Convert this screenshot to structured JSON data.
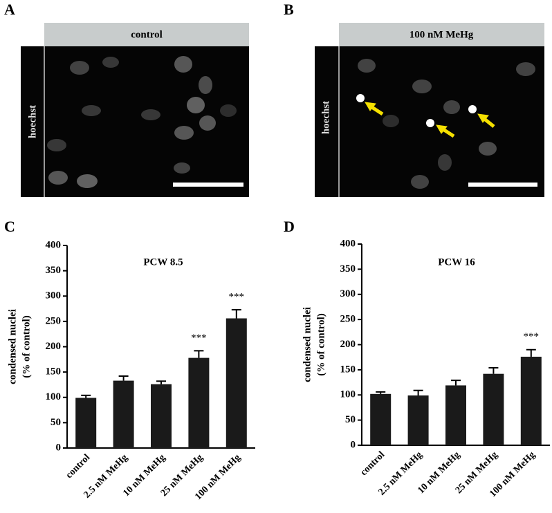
{
  "panels": [
    {
      "letter": "A",
      "header": "control",
      "stain": "hoechst"
    },
    {
      "letter": "B",
      "header": "100 nM MeHg",
      "stain": "hoechst"
    }
  ],
  "chart_data": [
    {
      "type": "bar",
      "panel": "C",
      "title": "PCW 8.5",
      "ylabel": [
        "condensed nuclei",
        "(% of control)"
      ],
      "categories": [
        "control",
        "2.5 nM MeHg",
        "10 nM MeHg",
        "25 nM MeHg",
        "100 nM MeHg"
      ],
      "values": [
        99,
        133,
        126,
        178,
        256
      ],
      "errors": [
        5,
        9,
        6,
        14,
        17
      ],
      "color": "#1a1a1a",
      "ylim": [
        0,
        400
      ],
      "yticks": [
        0,
        50,
        100,
        150,
        200,
        250,
        300,
        350,
        400
      ],
      "annotations": [
        {
          "category": "25 nM MeHg",
          "text": "***"
        },
        {
          "category": "100 nM MeHg",
          "text": "***"
        }
      ]
    },
    {
      "type": "bar",
      "panel": "D",
      "title": "PCW 16",
      "ylabel": [
        "condensed nuclei",
        "(% of control)"
      ],
      "categories": [
        "control",
        "2.5 nM MeHg",
        "10 nM MeHg",
        "25 nM MeHg",
        "100 nM MeHg"
      ],
      "values": [
        102,
        99,
        119,
        142,
        176
      ],
      "errors": [
        4,
        10,
        10,
        12,
        14
      ],
      "color": "#1a1a1a",
      "ylim": [
        0,
        400
      ],
      "yticks": [
        0,
        50,
        100,
        150,
        200,
        250,
        300,
        350,
        400
      ],
      "annotations": [
        {
          "category": "100 nM MeHg",
          "text": "***"
        }
      ]
    }
  ]
}
